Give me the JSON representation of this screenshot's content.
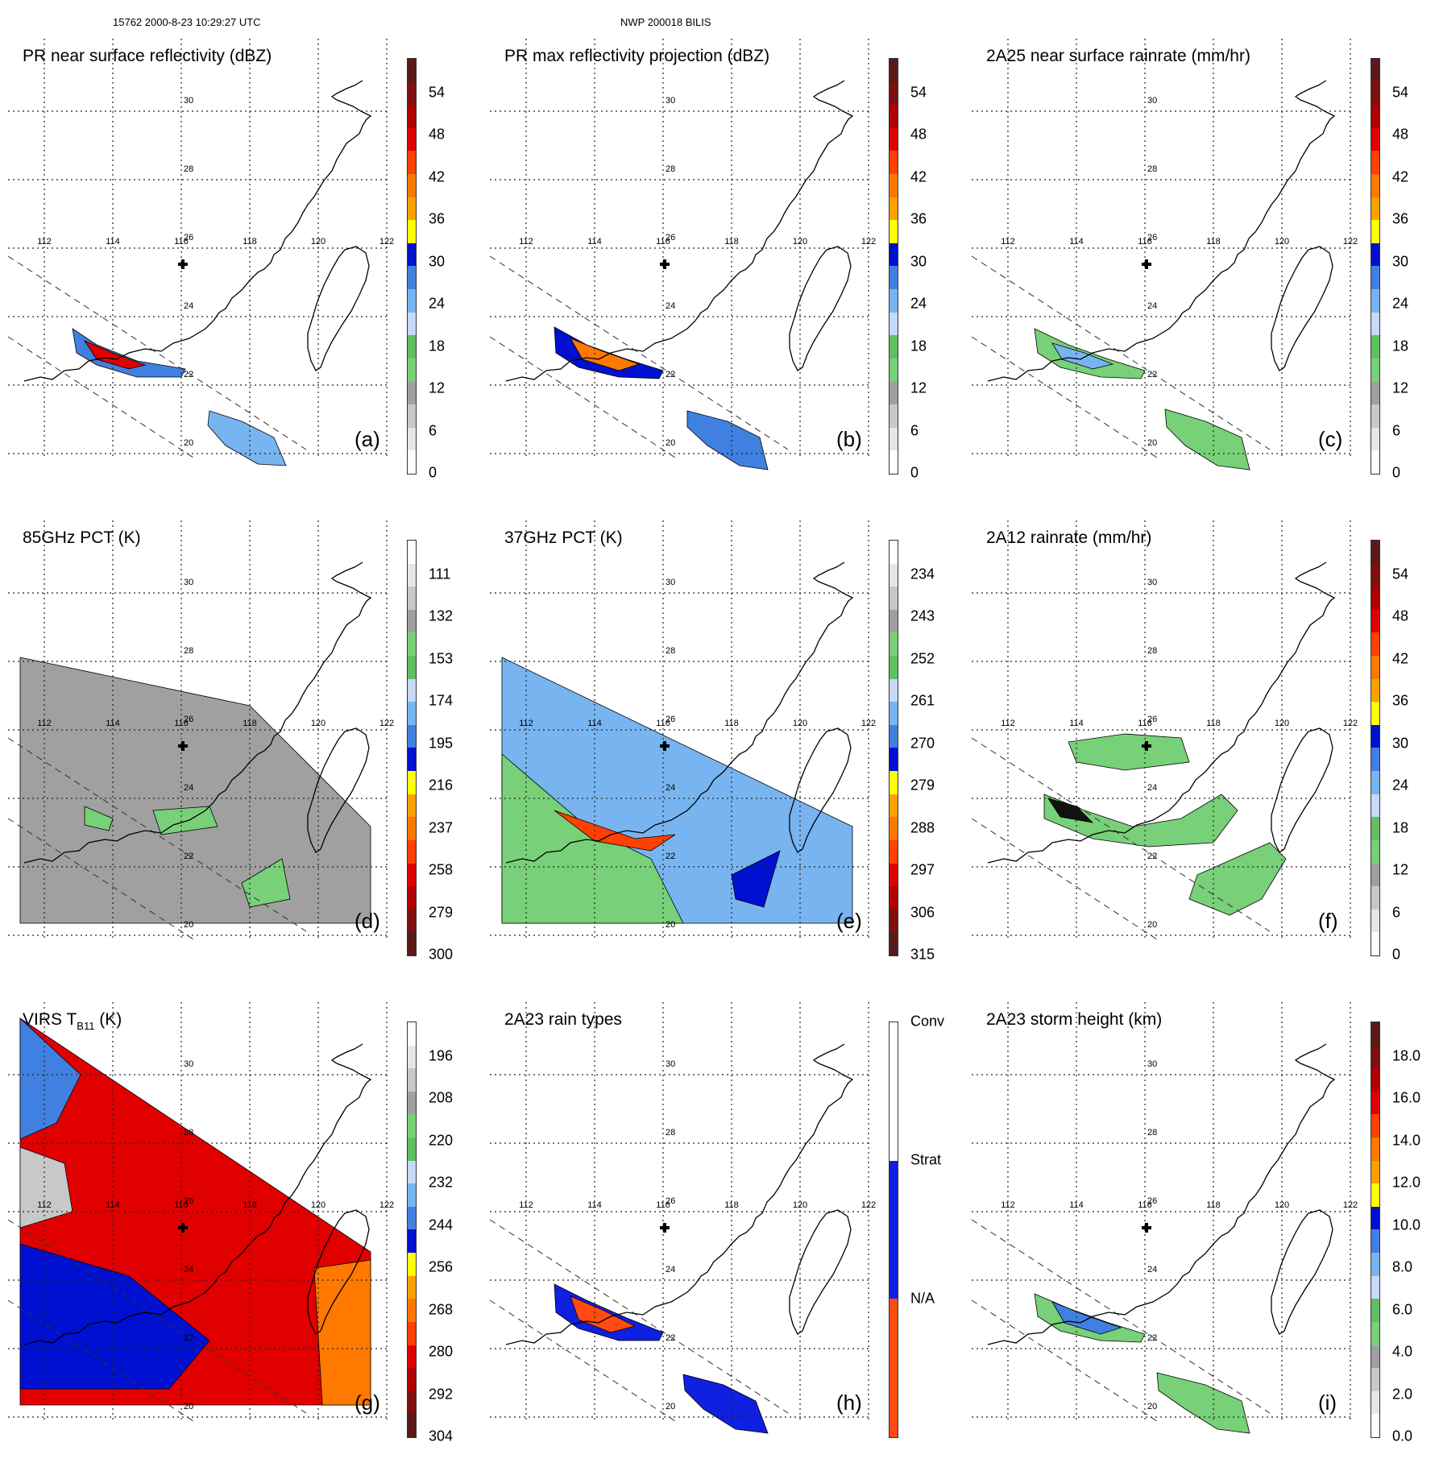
{
  "header": {
    "left": "15762 2000-8-23 10:29:27 UTC",
    "center": "NWP 200018 BILIS"
  },
  "map": {
    "lon_labels": [
      "112",
      "114",
      "116",
      "118",
      "120",
      "122"
    ],
    "lat_labels": [
      "30",
      "28",
      "26",
      "24",
      "22",
      "20"
    ],
    "storm_marker": "plus-icon"
  },
  "palettes": {
    "rain": [
      "#ffffff",
      "#e6e6e6",
      "#c8c8c8",
      "#a0a0a0",
      "#78d078",
      "#60c060",
      "#c8d8f8",
      "#78b4f0",
      "#4080e0",
      "#0010d0",
      "#ffff00",
      "#ffa000",
      "#ff7800",
      "#ff4000",
      "#e00000",
      "#b00000",
      "#801010",
      "#5a1a1a"
    ],
    "pct": [
      "#5a1a1a",
      "#801010",
      "#b00000",
      "#e00000",
      "#ff4000",
      "#ff7800",
      "#ffa000",
      "#ffff00",
      "#0010d0",
      "#4080e0",
      "#78b4f0",
      "#c8d8f8",
      "#60c060",
      "#78d078",
      "#a0a0a0",
      "#c8c8c8",
      "#e6e6e6",
      "#ffffff"
    ],
    "types": [
      "#ff4a10",
      "#1020e0",
      "#ffffff"
    ]
  },
  "panels": [
    {
      "id": "a",
      "title": "PR near surface reflectivity (dBZ)",
      "tag": "(a)",
      "palette": "rain",
      "ticks": [
        "54",
        "48",
        "42",
        "36",
        "30",
        "24",
        "18",
        "12",
        "6",
        "0"
      ]
    },
    {
      "id": "b",
      "title": "PR max reflectivity projection (dBZ)",
      "tag": "(b)",
      "palette": "rain",
      "ticks": [
        "54",
        "48",
        "42",
        "36",
        "30",
        "24",
        "18",
        "12",
        "6",
        "0"
      ]
    },
    {
      "id": "c",
      "title": "2A25 near surface rainrate (mm/hr)",
      "tag": "(c)",
      "palette": "rain",
      "ticks": [
        "54",
        "48",
        "42",
        "36",
        "30",
        "24",
        "18",
        "12",
        "6",
        "0"
      ]
    },
    {
      "id": "d",
      "title": "85GHz PCT (K)",
      "tag": "(d)",
      "palette": "pct",
      "ticks": [
        "111",
        "132",
        "153",
        "174",
        "195",
        "216",
        "237",
        "258",
        "279",
        "300"
      ]
    },
    {
      "id": "e",
      "title": "37GHz PCT (K)",
      "tag": "(e)",
      "palette": "pct",
      "ticks": [
        "234",
        "243",
        "252",
        "261",
        "270",
        "279",
        "288",
        "297",
        "306",
        "315"
      ]
    },
    {
      "id": "f",
      "title": "2A12 rainrate (mm/hr)",
      "tag": "(f)",
      "palette": "rain",
      "ticks": [
        "54",
        "48",
        "42",
        "36",
        "30",
        "24",
        "18",
        "12",
        "6",
        "0"
      ]
    },
    {
      "id": "g",
      "title": "VIRS T",
      "title_sub": "B11",
      "title_tail": " (K)",
      "tag": "(g)",
      "palette": "pct",
      "ticks": [
        "196",
        "208",
        "220",
        "232",
        "244",
        "256",
        "268",
        "280",
        "292",
        "304"
      ]
    },
    {
      "id": "h",
      "title": "2A23 rain types",
      "tag": "(h)",
      "palette": "types",
      "ticks": [
        "Conv",
        "Strat",
        "N/A"
      ]
    },
    {
      "id": "i",
      "title": "2A23 storm height (km)",
      "tag": "(i)",
      "palette": "rain",
      "ticks": [
        "18.0",
        "16.0",
        "14.0",
        "12.0",
        "10.0",
        "8.0",
        "6.0",
        "4.0",
        "2.0",
        "0.0"
      ]
    }
  ]
}
